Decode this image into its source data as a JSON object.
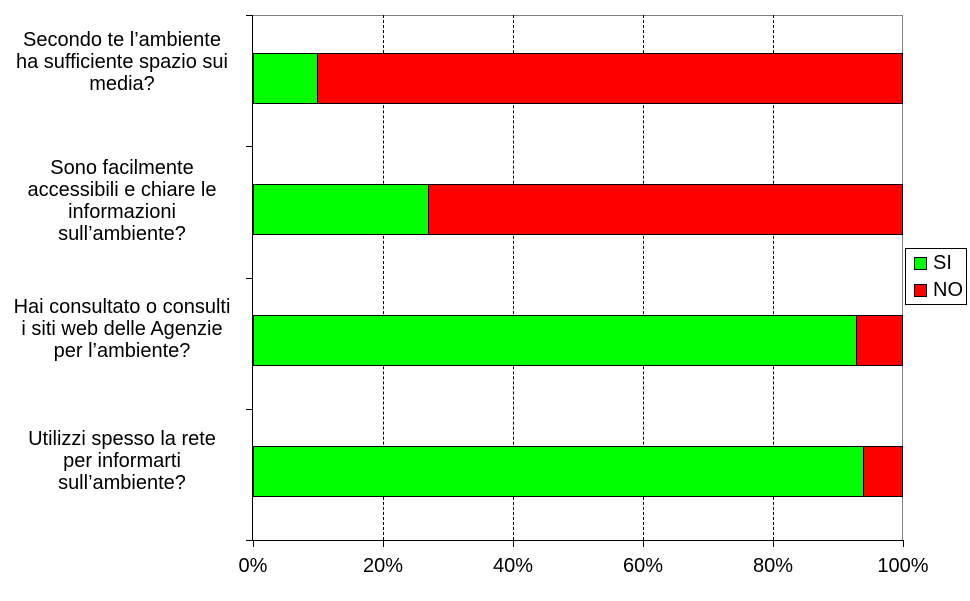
{
  "chart_data": {
    "type": "bar",
    "orientation": "horizontal-stacked",
    "title": "",
    "xlabel": "",
    "ylabel": "",
    "categories": [
      "Secondo te l’ambiente\nha sufficiente spazio sui\nmedia?",
      "Sono facilmente\naccessibili e chiare le\ninformazioni\nsull’ambiente?",
      "Hai consultato o consulti\ni siti web delle Agenzie\nper l’ambiente?",
      "Utilizzi spesso la rete\nper informarti\nsull’ambiente?"
    ],
    "series": [
      {
        "name": "SI",
        "color": "#00FF00",
        "values": [
          10,
          27,
          93,
          94
        ]
      },
      {
        "name": "NO",
        "color": "#FF0000",
        "values": [
          90,
          73,
          7,
          6
        ]
      }
    ],
    "x_axis": {
      "min": 0,
      "max": 100,
      "tick_step_pct": 20,
      "tick_labels": [
        "0%",
        "20%",
        "40%",
        "60%",
        "80%",
        "100%"
      ],
      "gridlines_pct": [
        20,
        40,
        60,
        80
      ],
      "gridline_style": "dashed"
    },
    "legend": {
      "position": "right",
      "entries": [
        {
          "label": "SI",
          "color": "#00FF00"
        },
        {
          "label": "NO",
          "color": "#FF0000"
        }
      ]
    },
    "colors": {
      "plot_frame": "#808080",
      "axis": "#000000",
      "text": "#000000",
      "background": "#FFFFFF"
    }
  }
}
